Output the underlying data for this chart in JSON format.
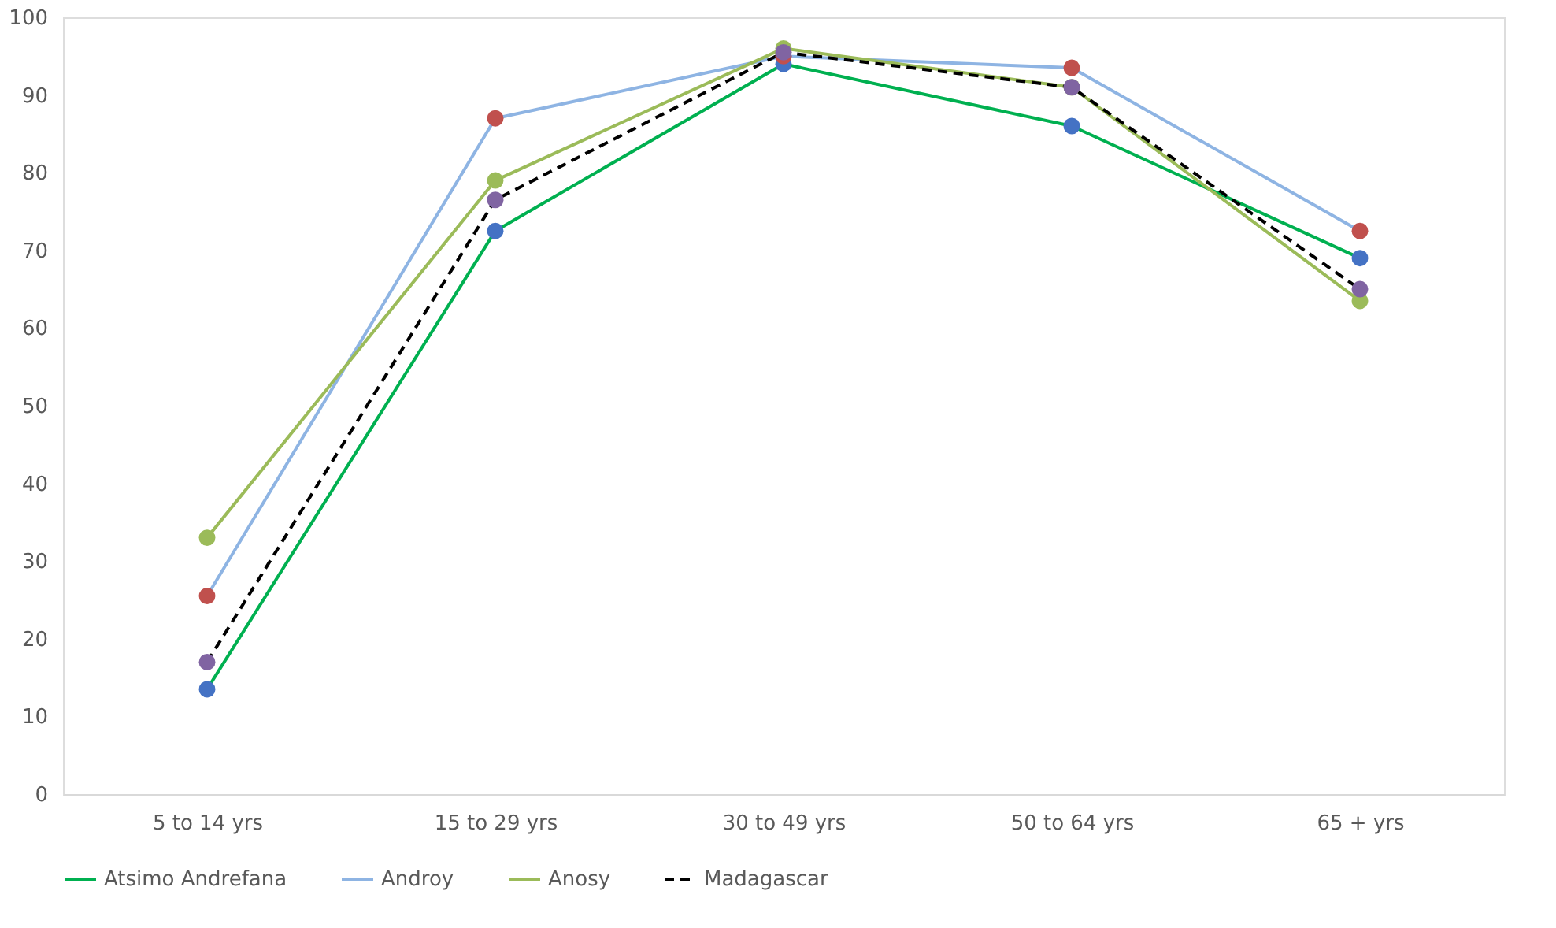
{
  "chart_data": {
    "type": "line",
    "categories": [
      "5 to 14 yrs",
      "15 to 29 yrs",
      "30 to 49 yrs",
      "50 to 64 yrs",
      "65 + yrs"
    ],
    "series": [
      {
        "name": "Atsimo Andrefana",
        "color": "#00b050",
        "colors": [
          "#4472c4",
          "#4472c4",
          "#4472c4",
          "#4472c4",
          "#4472c4"
        ],
        "values": [
          13.5,
          72.5,
          94,
          86,
          69
        ]
      },
      {
        "name": "Androy",
        "color": "#8eb4e3",
        "colors": [
          "#c0504d",
          "#c0504d",
          "#c0504d",
          "#c0504d",
          "#c0504d"
        ],
        "values": [
          25.5,
          87,
          95,
          93.5,
          72.5
        ]
      },
      {
        "name": "Anosy",
        "color": "#9bbb59",
        "colors": [
          "#9bbb59",
          "#9bbb59",
          "#9bbb59",
          "#9bbb59",
          "#9bbb59"
        ],
        "values": [
          33,
          79,
          96,
          91,
          63.5
        ]
      },
      {
        "name": "Madagascar",
        "color": "#000000",
        "line_style": "dashed",
        "colors": [
          "#8064a2",
          "#8064a2",
          "#8064a2",
          "#8064a2",
          "#8064a2"
        ],
        "values": [
          17,
          76.5,
          95.5,
          91,
          65
        ]
      }
    ],
    "ylim": [
      0,
      100
    ],
    "yticks": [
      0,
      10,
      20,
      30,
      40,
      50,
      60,
      70,
      80,
      90,
      100
    ],
    "grid": false,
    "legend": "bottom",
    "marker": "circle",
    "line_style": "solid"
  }
}
